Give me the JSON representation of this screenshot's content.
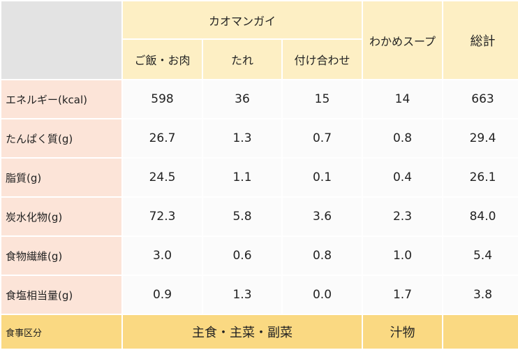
{
  "header": {
    "group_title": "カオマンガイ",
    "sub_columns": [
      "ご飯・お肉",
      "たれ",
      "付け合わせ"
    ],
    "soup": "わかめスープ",
    "total": "総計"
  },
  "rows": [
    {
      "label": "エネルギー(kcal)",
      "values": [
        "598",
        "36",
        "15",
        "14",
        "663"
      ]
    },
    {
      "label": "たんぱく質(g)",
      "values": [
        "26.7",
        "1.3",
        "0.7",
        "0.8",
        "29.4"
      ]
    },
    {
      "label": "脂質(g)",
      "values": [
        "24.5",
        "1.1",
        "0.1",
        "0.4",
        "26.1"
      ]
    },
    {
      "label": "炭水化物(g)",
      "values": [
        "72.3",
        "5.8",
        "3.6",
        "2.3",
        "84.0"
      ]
    },
    {
      "label": "食物繊維(g)",
      "values": [
        "3.0",
        "0.6",
        "0.8",
        "1.0",
        "5.4"
      ]
    },
    {
      "label": "食塩相当量(g)",
      "values": [
        "0.9",
        "1.3",
        "0.0",
        "1.7",
        "3.8"
      ]
    }
  ],
  "footer": {
    "label": "食事区分",
    "main_category": "主食・主菜・副菜",
    "soup_category": "汁物",
    "total_category": ""
  }
}
